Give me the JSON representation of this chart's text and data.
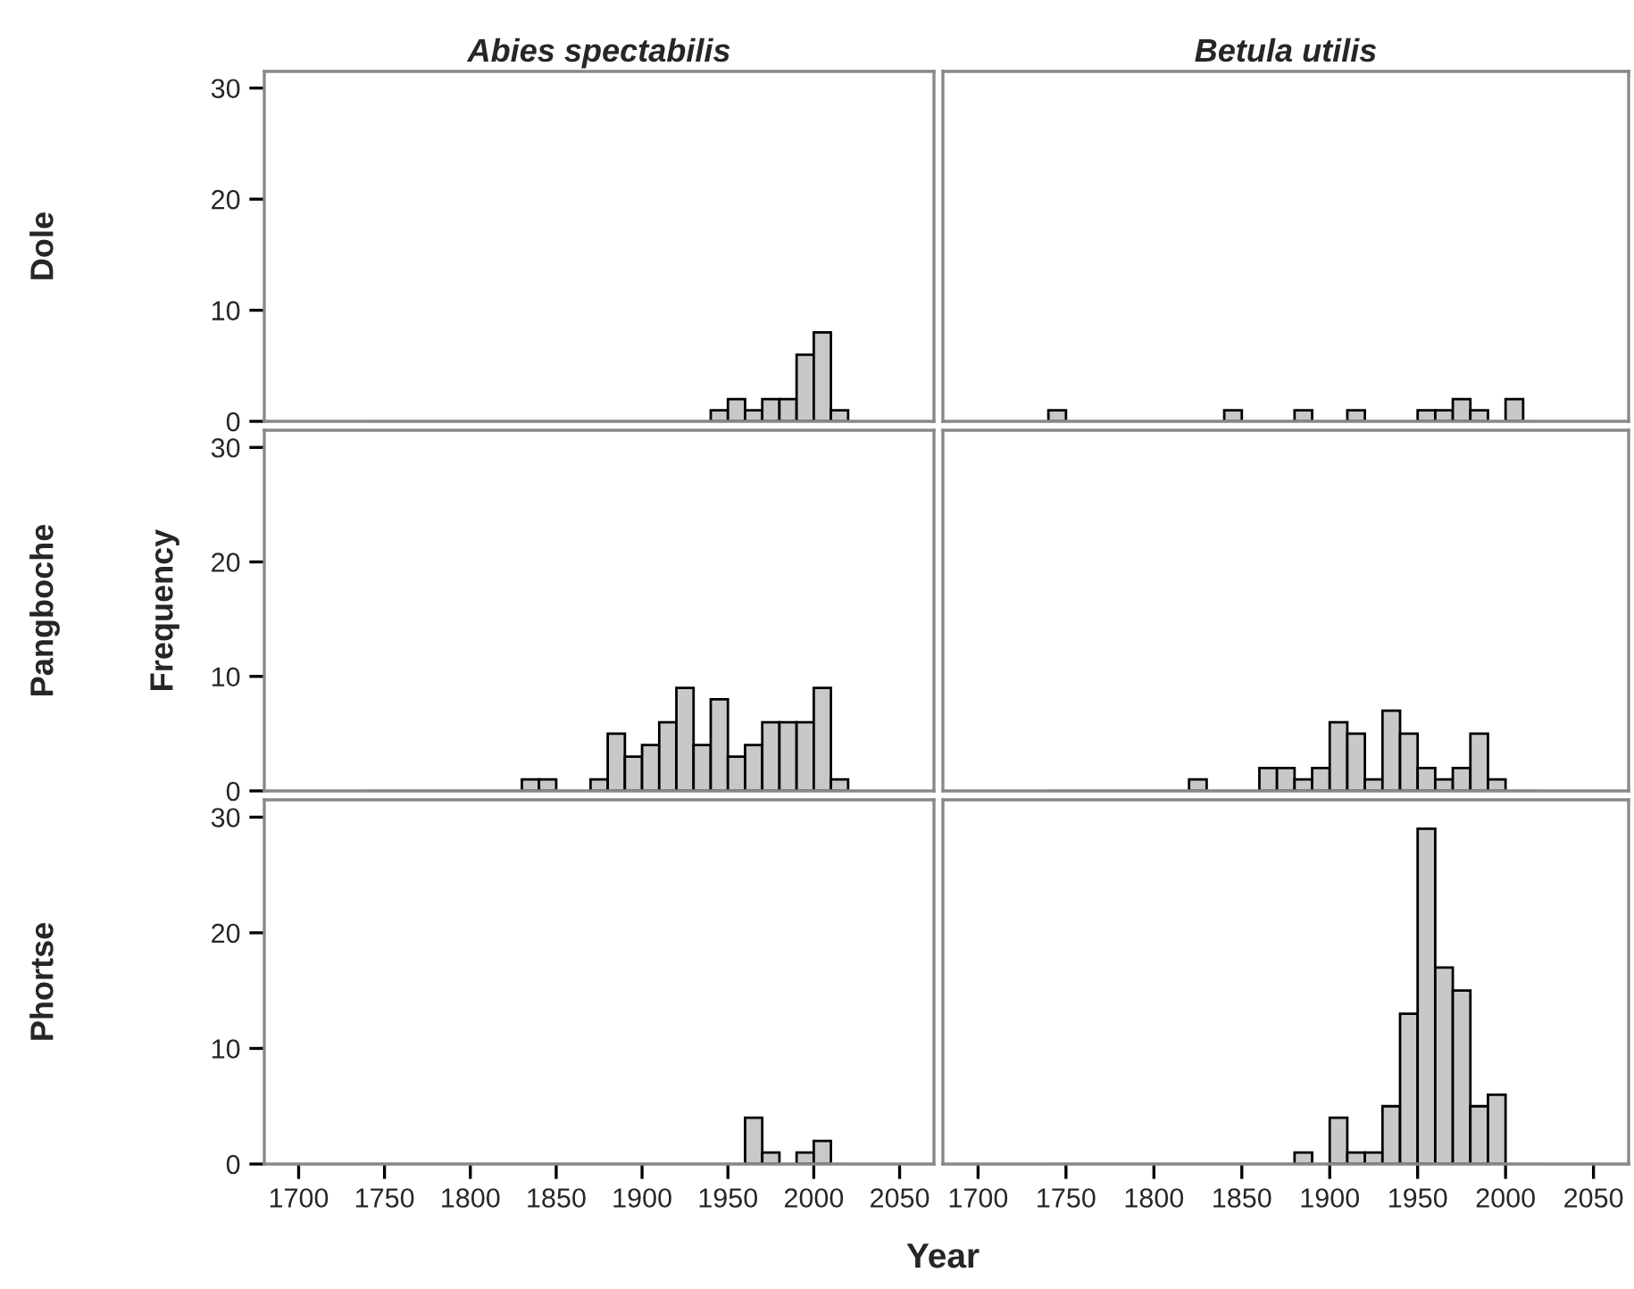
{
  "chart_data": [
    {
      "type": "histogram",
      "title": "Abies spectabilis",
      "annotations": [
        "Dole"
      ],
      "bins": [
        1740,
        1750,
        1760,
        1770,
        1780,
        1790,
        1800,
        1810,
        1820,
        1830,
        1840,
        1850,
        1860,
        1870,
        1880,
        1890,
        1900,
        1910,
        1920,
        1930,
        1940,
        1950,
        1960,
        1970,
        1980,
        1990,
        2000,
        2010,
        2020
      ],
      "values": [
        0,
        0,
        0,
        0,
        0,
        0,
        0,
        0,
        0,
        0,
        0,
        0,
        0,
        0,
        0,
        0,
        0,
        0,
        0,
        0,
        1,
        2,
        1,
        2,
        2,
        6,
        8,
        1
      ],
      "color": "#c8c8c8",
      "xlim": [
        1680,
        2070
      ],
      "xticks": [
        1700,
        1750,
        1800,
        1850,
        1900,
        1950,
        2000,
        2050
      ],
      "ylim": [
        0,
        31.5
      ],
      "yticks": [
        0,
        10,
        20,
        30
      ],
      "tick_labels": "y",
      "grid": false
    },
    {
      "type": "histogram",
      "title": "Betula utilis",
      "bins": [
        1740,
        1750,
        1760,
        1770,
        1780,
        1790,
        1800,
        1810,
        1820,
        1830,
        1840,
        1850,
        1860,
        1870,
        1880,
        1890,
        1900,
        1910,
        1920,
        1930,
        1940,
        1950,
        1960,
        1970,
        1980,
        1990,
        2000,
        2010,
        2020
      ],
      "values": [
        1,
        0,
        0,
        0,
        0,
        0,
        0,
        0,
        0,
        0,
        1,
        0,
        0,
        0,
        1,
        0,
        0,
        1,
        0,
        0,
        0,
        1,
        1,
        2,
        1,
        0,
        2,
        0
      ],
      "color": "#c8c8c8",
      "xlim": [
        1680,
        2070
      ],
      "xticks": [
        1700,
        1750,
        1800,
        1850,
        1900,
        1950,
        2000,
        2050
      ],
      "ylim": [
        0,
        31.5
      ],
      "yticks": [
        0,
        10,
        20,
        30
      ],
      "tick_labels": false,
      "grid": false
    },
    {
      "type": "histogram",
      "ylabel": "Frequency",
      "annotations": [
        "Pangboche"
      ],
      "bins": [
        1740,
        1750,
        1760,
        1770,
        1780,
        1790,
        1800,
        1810,
        1820,
        1830,
        1840,
        1850,
        1860,
        1870,
        1880,
        1890,
        1900,
        1910,
        1920,
        1930,
        1940,
        1950,
        1960,
        1970,
        1980,
        1990,
        2000,
        2010,
        2020
      ],
      "values": [
        0,
        0,
        0,
        0,
        0,
        0,
        0,
        0,
        0,
        1,
        1,
        0,
        0,
        1,
        5,
        3,
        4,
        6,
        9,
        4,
        8,
        3,
        4,
        6,
        6,
        6,
        9,
        1
      ],
      "color": "#c8c8c8",
      "xlim": [
        1680,
        2070
      ],
      "xticks": [
        1700,
        1750,
        1800,
        1850,
        1900,
        1950,
        2000,
        2050
      ],
      "ylim": [
        0,
        31.5
      ],
      "yticks": [
        0,
        10,
        20,
        30
      ],
      "tick_labels": "y",
      "grid": false
    },
    {
      "type": "histogram",
      "bins": [
        1740,
        1750,
        1760,
        1770,
        1780,
        1790,
        1800,
        1810,
        1820,
        1830,
        1840,
        1850,
        1860,
        1870,
        1880,
        1890,
        1900,
        1910,
        1920,
        1930,
        1940,
        1950,
        1960,
        1970,
        1980,
        1990,
        2000,
        2010,
        2020
      ],
      "values": [
        0,
        0,
        0,
        0,
        0,
        0,
        0,
        0,
        1,
        0,
        0,
        0,
        2,
        2,
        1,
        2,
        6,
        5,
        1,
        7,
        5,
        2,
        1,
        2,
        5,
        1,
        0,
        0
      ],
      "color": "#c8c8c8",
      "xlim": [
        1680,
        2070
      ],
      "xticks": [
        1700,
        1750,
        1800,
        1850,
        1900,
        1950,
        2000,
        2050
      ],
      "ylim": [
        0,
        31.5
      ],
      "yticks": [
        0,
        10,
        20,
        30
      ],
      "tick_labels": false,
      "grid": false
    },
    {
      "type": "histogram",
      "xlabel": "Year",
      "annotations": [
        "Phortse"
      ],
      "bins": [
        1740,
        1750,
        1760,
        1770,
        1780,
        1790,
        1800,
        1810,
        1820,
        1830,
        1840,
        1850,
        1860,
        1870,
        1880,
        1890,
        1900,
        1910,
        1920,
        1930,
        1940,
        1950,
        1960,
        1970,
        1980,
        1990,
        2000,
        2010,
        2020
      ],
      "values": [
        0,
        0,
        0,
        0,
        0,
        0,
        0,
        0,
        0,
        0,
        0,
        0,
        0,
        0,
        0,
        0,
        0,
        0,
        0,
        0,
        0,
        0,
        4,
        1,
        0,
        1,
        2,
        0
      ],
      "color": "#c8c8c8",
      "xlim": [
        1680,
        2070
      ],
      "xticks": [
        1700,
        1750,
        1800,
        1850,
        1900,
        1950,
        2000,
        2050
      ],
      "ylim": [
        0,
        31.5
      ],
      "yticks": [
        0,
        10,
        20,
        30
      ],
      "grid": false
    },
    {
      "type": "histogram",
      "bins": [
        1740,
        1750,
        1760,
        1770,
        1780,
        1790,
        1800,
        1810,
        1820,
        1830,
        1840,
        1850,
        1860,
        1870,
        1880,
        1890,
        1900,
        1910,
        1920,
        1930,
        1940,
        1950,
        1960,
        1970,
        1980,
        1990,
        2000,
        2010,
        2020
      ],
      "values": [
        0,
        0,
        0,
        0,
        0,
        0,
        0,
        0,
        0,
        0,
        0,
        0,
        0,
        0,
        1,
        0,
        4,
        1,
        1,
        5,
        13,
        29,
        17,
        15,
        5,
        6,
        0,
        0
      ],
      "color": "#c8c8c8",
      "xlim": [
        1680,
        2070
      ],
      "xticks": [
        1700,
        1750,
        1800,
        1850,
        1900,
        1950,
        2000,
        2050
      ],
      "ylim": [
        0,
        31.5
      ],
      "yticks": [
        0,
        10,
        20,
        30
      ],
      "tick_labels": "x",
      "grid": false
    }
  ]
}
